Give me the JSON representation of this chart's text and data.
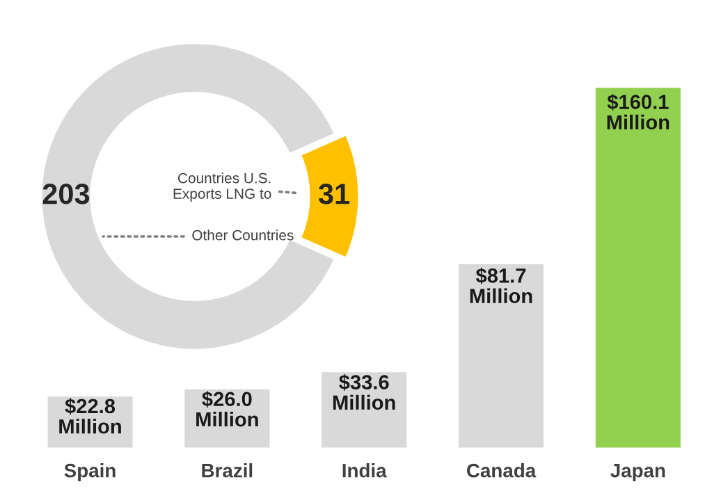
{
  "chart_data": [
    {
      "type": "donut",
      "categories": [
        "Countries U.S.\nExports LNG to",
        "Other Countries"
      ],
      "values": [
        31,
        203
      ],
      "colors": [
        "#ffc000",
        "#d9d9d9"
      ],
      "data_labels": true
    },
    {
      "type": "bar",
      "categories": [
        "Spain",
        "Brazil",
        "India",
        "Canada",
        "Japan"
      ],
      "values": [
        22.8,
        26.0,
        33.6,
        81.7,
        160.1
      ],
      "colors": [
        "#d9d9d9",
        "#d9d9d9",
        "#d9d9d9",
        "#d9d9d9",
        "#92d050"
      ],
      "value_labels": [
        "$22.8\nMillion",
        "$26.0\nMillion",
        "$33.6\nMillion",
        "$81.7\nMillion",
        "$160.1\nMillion"
      ]
    }
  ]
}
